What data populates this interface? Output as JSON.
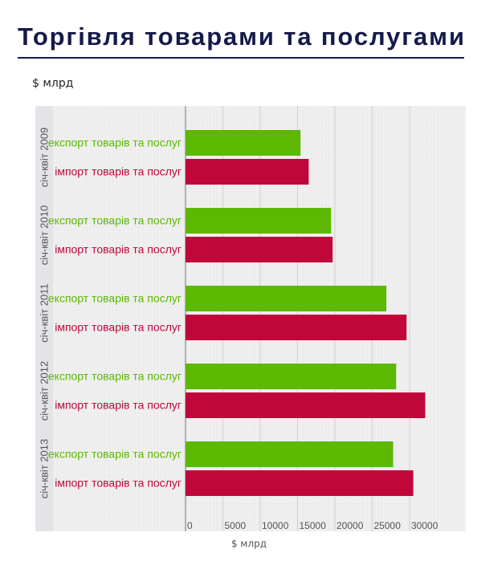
{
  "chart_data": {
    "type": "hbar-grouped",
    "title": "Торгівля товарами та послугами",
    "subtitle": "$ млрд",
    "xlabel": "$ млрд",
    "categories": [
      "січ-квіт 2009",
      "січ-квіт 2010",
      "січ-квіт 2011",
      "січ-квіт 2012",
      "січ-квіт 2013"
    ],
    "series": [
      {
        "name": "експорт товарів та послуг",
        "color": "#5cb800",
        "values": [
          15400,
          19500,
          26900,
          28200,
          27800
        ]
      },
      {
        "name": "імпорт товарів та послуг",
        "color": "#c0073a",
        "values": [
          16500,
          19700,
          29600,
          32100,
          30500
        ]
      }
    ],
    "xlim": [
      0,
      37000
    ],
    "xticks": [
      0,
      5000,
      10000,
      15000,
      20000,
      25000,
      30000
    ],
    "grid": true
  }
}
